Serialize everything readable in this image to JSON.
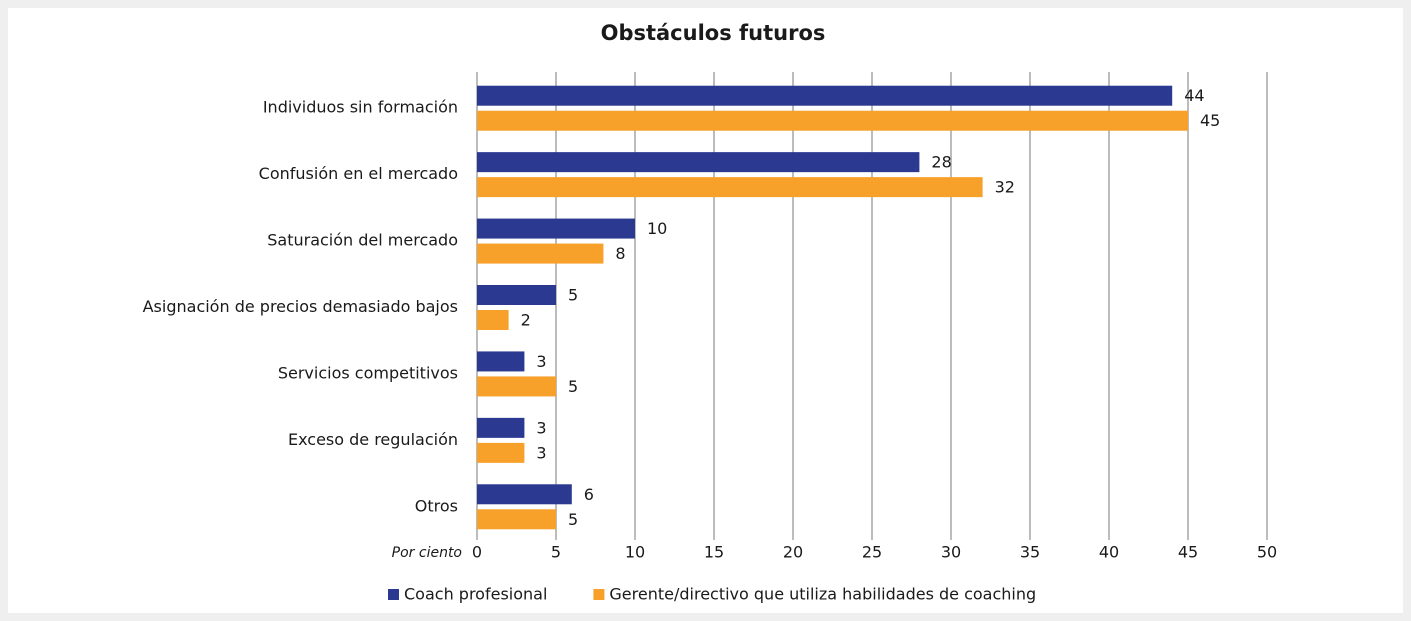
{
  "chart_data": {
    "type": "barh",
    "title": "Obstáculos futuros",
    "xlabel": "Por ciento",
    "categories": [
      "Individuos sin formación",
      "Confusión en el mercado",
      "Saturación del mercado",
      "Asignación de precios demasiado bajos",
      "Servicios competitivos",
      "Exceso de regulación",
      "Otros"
    ],
    "series": [
      {
        "name": "Coach profesional",
        "color": "#2b3990",
        "values": [
          44,
          28,
          10,
          5,
          3,
          3,
          6
        ]
      },
      {
        "name": "Gerente/directivo que utiliza habilidades de coaching",
        "color": "#f7a02a",
        "values": [
          45,
          32,
          8,
          2,
          5,
          3,
          5
        ]
      }
    ],
    "xlim": [
      0,
      50
    ],
    "xticks": [
      0,
      5,
      10,
      15,
      20,
      25,
      30,
      35,
      40,
      45,
      50
    ],
    "grid": true,
    "legend": "bottom"
  }
}
